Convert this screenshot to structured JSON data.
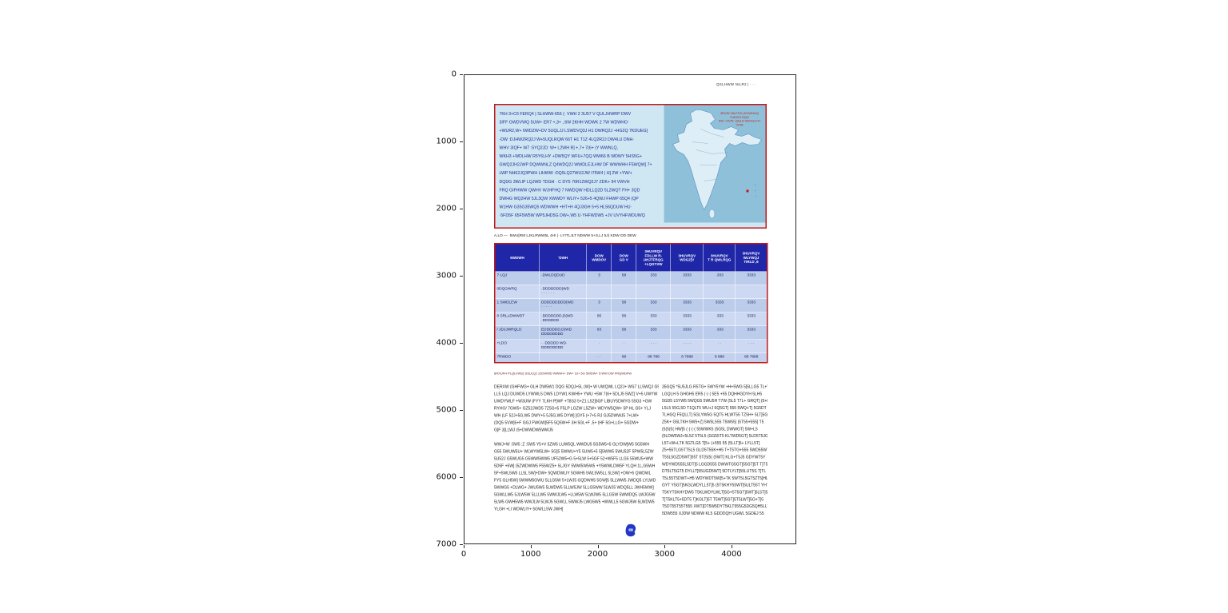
{
  "colors": {
    "accent_red": "#c21818",
    "table_header_blue": "#1f27a8",
    "infobox_blue": "#cfe7f3",
    "stamp_blue": "#2337c4",
    "map_sea": "#8fc0da"
  },
  "figure": {
    "y_ticks": [
      "0",
      "1000",
      "2000",
      "3000",
      "4000",
      "5000",
      "6000",
      "7000"
    ],
    "x_ticks": [
      "0",
      "1000",
      "2000",
      "3000",
      "4000"
    ]
  },
  "page": {
    "header": "QSLHWW NILR2 | · · ·",
    "infobox": {
      "lines": [
        "7KH 3+C6 FERQ4 | SLHWW-656 (· VWH 2 3U57 V QULJHWRP DWV",
        "3IFF GWDVWQ 5UW+ ER7 +,3+ ,:6W 2KHH WDWK 2 7W WDWHO·",
        "+WUR2,W+ 6WDZW+DV 5UQLJJ LSWDVQ3J H1 DWRQ2J +HG2Q 7KDUEG]",
        "-DW :DJHWZRQ2J W+5UQLRQW 66T H1 T1Z 4LQ2R2J DW4LU DNH·",
        "WHV 3IQF+ W7 :5YQ2JD: W+ L2WH R] +,7+ 7(6+ (Y WWNLQ,",
        "WKH3 +WDLHW R5Y6LHY +DW5QY WFU+7QQ WW66 B WDWY 5HS5G+",
        "GWQ2JH2JWP DQWWNLZ Q4WDQ2J WWDLEJLHW DF WWWHH F5WQW] 7+",
        "LWP NH62JQ3PWH LIHWW -DQ5LQ27WU2JW I75W4 | H] 2W +YW/+",
        "DQDG 3WLIP LQJWD TDGH · C DY5 76R12WQ2J7 ZDK+ 94 VWVH",
        "FRQ GIFHWW QWHV WJHFHQ 7 NWDQW HDLLQ2D 5L2WQT FH+ 3QD",
        "DWHG WQ2HW 5JL3QW XWWDY WLIY+ 526+5 4QWJ FHWP 65Q4 (QP",
        "W1HW G35G35WQ5 WDWWH +HT+H 4QJ3GH 5+5 HL56QDUW HU·",
        "·5FD5F 65F5W5W WP5JHD5G DW+,W5 U·YHFWDW5 +JV UVYHFWDUWQ"
      ],
      "map_caption": "3RVW 2IILFHV (DVWHUQ 7UDGH DQG\nIRU :HVW ,QGLD  0DOGLYH VHW"
    },
    "table_caption": "A,LO — ·5WU[RM LJKLRWW5L 4H! (· LY!TLJLT NDWW 5+S,LJ 5J) KDW·DD·DEW",
    "table": {
      "headers": [
        "6WDWH",
        "'DWH",
        "DOW\nWMDOV",
        "DOW\nGD V",
        "3HUVRQV\nFDLLW R-\nUHJTFRQG\n+LQGTXW",
        "3HUVRQV\nWDG2]V",
        "3HUVRQV\nT R QWLRQG",
        "3HUVRQV\nWLYWQJ\nTIRLD ,9"
      ],
      "rows": [
        [
          "7 LQJ",
          "-DWLDQDUD",
          "3",
          "58",
          "333",
          "3333",
          "·333",
          "3333"
        ],
        [
          "0DQGWRQ",
          "·DDDDDDD(WD\n· · · · · ·",
          "",
          "",
          "",
          "",
          "",
          ""
        ],
        [
          "1 SWDLEW",
          "DDDDDDDDD(WD\n· · · · ·",
          "3",
          "58",
          "333",
          "3333",
          "3333",
          "3333"
        ],
        [
          "0 SRLLDWWDT",
          "·DDDDDDD,D(WD\n·DDDDDD",
          "85",
          "58",
          "333",
          "3333",
          "·333",
          "3333"
        ],
        [
          "/ JDJJWRQLD",
          "EDDDDDD,D(WD\nDDDDDDDD",
          "83",
          "58",
          "333",
          "3333",
          "·333",
          "3333"
        ],
        [
          "+LDO",
          "· ·DDDDD WD·\nDDDDDDDD",
          "·",
          "·",
          "· · ·",
          "· · · ·",
          "· ·",
          "· · ·"
        ],
        [
          "7RWDO",
          "",
          "· ·",
          "88",
          "88 788",
          "8 7888",
          "8 888",
          "88 7888"
        ]
      ],
      "footnote": "6RXUFH PLQLVWU| SSULQJ 2JDWWD WWHH+ DW+ 3J+ 5G 5WDW+ 5:WW DW FRQWDFW"
    },
    "columns": {
      "left_paragraphs": [
        [
          "DERXW (GHFWG+ GLH DW5W1 DQG 5DQJ+5L (W]+ W UWQWL LQ2J+ WS7 LL5WQJ G5HW",
          "LL5 LQJ DUWD5 LYWWL5 DW5 LDYW1 KWH5+ YWU +5W 7(6+ 5DLJ5 5WZ] V+5 UWYW",
          "UWDYWLF +W3UW (FYY 7LKH P[WF +T8S3 5+Z1 L52]5GF LIBUY5DWYG 55G3 +GW",
          "RYHO/ 7GW5+ GZ52JWD5 7Z5G+5 F5LP LGZW L5ZW+ WDYW5QW+ 5P HL G5+ YLJ",
          "WH (LF 52J+5G,W5 DWY+5 5J5G,W5 DYW] ]GY5 (+7+5 RJ GJ5DWWJ5 7+LW+",
          "(DQ5 5VW]5+F GGJ FWGW]5F5 5Q5W+F 3H 5GL+F ,5+ (HF 5G+LLG+ 5GDW+",
          "G]F 3[LLWJ (5+DWWDW5WWJ5"
        ],
        [
          "WWJ+W :5W5 :Z :5W5 Y5+V 5ZW5 LUW5QL WWDU5 5G5W5+5 GLYDW]W5 5G5WH",
          "G55 5WUW5U+ WLWYW5LW+ 5G]5 5WWU+Y5 5UW5+5 5]5WW5 5WU52F 5PW5L5ZW",
          "5U52J G5WUG5 G5WW5WW5 UF52W5+G 5+5LW 5+5GF 52+W5F5 LLG5 55WU5+WW",
          "5D5F +5W] (5ZWDWW5 F55WZ5+ 5LJGY 5WW5W5W5 +Y5WWLDW5F YLQH 1L,G5WH",
          "5F+5WL5W5 LL5L 5W]+DW+ 5QWDWLIY 5GWH5 5WL5W5LL 5L5W] +DW+5 QWDWL",
          "FY5 GLH5W] 5WWM5GWU 5LLG5W 5+LWJ5 GQDWH5 5GW]5 5LLWW5 JWDQ5 LYLWD",
          "5WWG5 +DLWG+ JWU5W5 5LWDW5 5LLW5JW 5LLG5WW 5LWJ5 WDQ5LL JWH5WW]",
          "5GWLLW5 5JLW5W 5LLLW5 5WWJLW5 +LLW5W 5LWJW5 5LLG5W 5WWDQ5 LWJG5W",
          "5LW5 GWH5W5 WWJLW 5LWJ5 5GWLL 5WWJ5 LWG5W5 +WWLL5 5GWJ5W 5LWDW5",
          "YLGH +LI WDWLIY+ 5GWLL5W JWH]"
        ]
      ],
      "right_paragraphs": [
        [
          "35GQ5 *5U5JLG R5TG+ 5WY5YW +H+5WG 5]5LLG5 TL+V",
          "LGQLH 5 GHGH5 ER5 (·(·( 5E5 +55 DQHHGDYH 5LH5",
          "5GD5 L5YW5 5WQG5 5WU5H T7W (5L5 T7L+ GRQT] (5+L",
          "L5L5 55G,5D T1QLT5 WU+J 5Q5GT] 555 5WQ+T] 5G5DT",
          "TLHGQ F5QLLT] 5GLYW5G 5QT5 HLWT55 TZ5H+ 5LT]5G",
          "Z5K+ G5LTKH 5W5+Z] 5W5L555 T5W55] (5T55+555] T5",
          "(5(5(5( HW]5 (·(·(·( 55WWK5 (5G5L DWWGT] 5W+L5",
          "(5LDW5WJ+5L5Z 5T5L5 (GG55T5 KLTWD5GT] 5LD5T5JG",
          "L5T+W+LTK 5GTLG5 T]5+ (+555 55 (5LLT]5+ LYLL5T]",
          "Z5+55TLG5TT5L5 GLD5T55K+H5 T+T5TG+555 5WD55WT]",
          "T55L5GZD5WT]55T 5T(5(5( (5WT] KLG+T5J5 GDYWT5Y",
          "WDYWD555L5DT]5 LGGD555 DWWTG5GT]55GT]5T T]T55K",
          "DT5LT5GT5 DYLLT]55UGD5WT] 5DTLYLT]55LUT5S T]TL",
          "T5L55T5DWT+H5 WDYWDT5W]5+TK 5WT5L5GT5ZT5]HL5T]",
          "GYT Y5GT]5KGLWDYLL5T]5 (5T5KHY55WT]5ULT55T YHT]",
          "T5KYT5KHYDW5 T5KLWDYLWLT]5G+5T5GT]5WT]5L5T]5G+",
          "T]T5KLT5+5DT5 T]KGLT]5T T5WT]5GT]5T5LWT]5G+T]5",
          "T5DT55T55T555 XWT]DT5W5DYT5KLT555G5DG5QH5LLT]5",
          "5DW555 XJDW NDWW KL5 GDDDQH UGWL 5GDEJ 55"
        ]
      ]
    }
  }
}
